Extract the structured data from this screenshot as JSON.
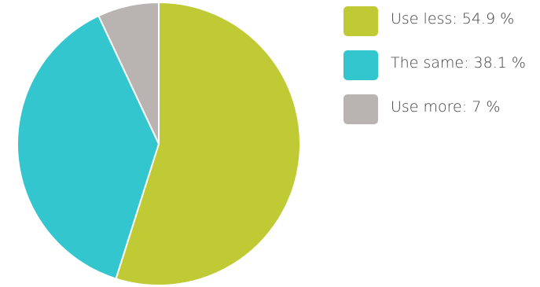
{
  "chart_data": {
    "type": "pie",
    "title": "",
    "start": "12 o'clock, clockwise",
    "slices": [
      {
        "label": "Use less",
        "value": 54.9,
        "color": "#bfca34",
        "legend": "Use less: 54.9 %"
      },
      {
        "label": "The same",
        "value": 38.1,
        "color": "#33c6cf",
        "legend": "The same: 38.1 %"
      },
      {
        "label": "Use more",
        "value": 7,
        "color": "#b9b4b1",
        "legend": "Use more: 7 %"
      }
    ],
    "legend_position": "right"
  }
}
